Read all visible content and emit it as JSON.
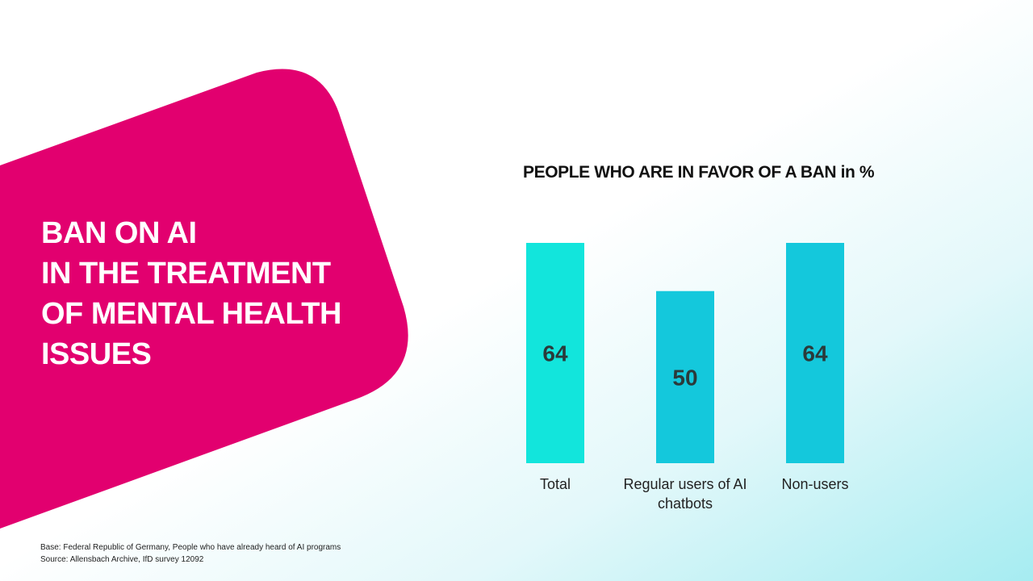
{
  "headline": [
    "BAN ON AI",
    "IN THE TREATMENT",
    "OF MENTAL HEALTH",
    "ISSUES"
  ],
  "colors": {
    "brand": "#e2006f",
    "bar_total": "#12e5dc",
    "bar_group": "#14c8dc",
    "value_text": "#2b3a3a"
  },
  "chart_data": {
    "type": "bar",
    "title": "PEOPLE WHO ARE IN FAVOR OF A BAN in %",
    "categories": [
      [
        "Total"
      ],
      [
        "Regular users of AI",
        "chatbots"
      ],
      [
        "Non-users"
      ]
    ],
    "values": [
      64,
      50,
      64
    ],
    "ylim": [
      0,
      64
    ],
    "grid": false,
    "legend": "none"
  },
  "footnote": {
    "base": "Base: Federal Republic of Germany, People who have already heard of AI programs",
    "source": "Source: Allensbach Archive, IfD survey 12092"
  }
}
